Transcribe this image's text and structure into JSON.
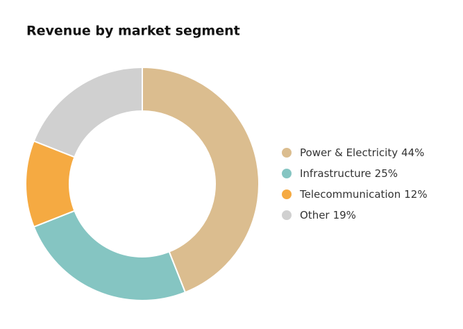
{
  "chart_data": {
    "type": "donut",
    "title": "Revenue by market segment",
    "categories": [
      "Power & Electricity",
      "Infrastructure",
      "Telecommunication",
      "Other"
    ],
    "values": [
      44,
      25,
      12,
      19
    ],
    "value_labels": [
      "44%",
      "25%",
      "12%",
      "19%"
    ],
    "colors": [
      "#dbbd8f",
      "#85c5c2",
      "#f5aa42",
      "#d0d0d0"
    ]
  }
}
